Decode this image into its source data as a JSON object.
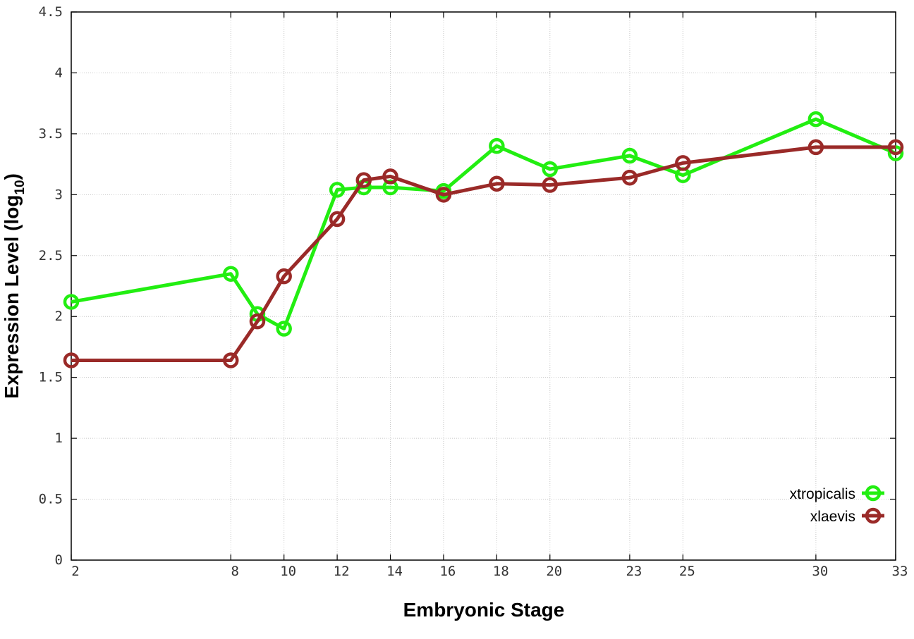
{
  "chart_data": {
    "type": "line",
    "xlabel": "Embryonic Stage",
    "ylabel": "Expression Level (log",
    "ylabel_sub": "10",
    "ylabel_end": ")",
    "x_ticks": [
      2,
      8,
      10,
      12,
      14,
      16,
      18,
      20,
      23,
      25,
      30,
      33
    ],
    "y_ticks": [
      "0",
      "0.5",
      "1",
      "1.5",
      "2",
      "2.5",
      "3",
      "3.5",
      "4",
      "4.5"
    ],
    "xlim": [
      2,
      33
    ],
    "ylim": [
      0,
      4.5
    ],
    "grid": true,
    "legend_position": "bottom-right",
    "series": [
      {
        "name": "xtropicalis",
        "color": "#22ee11",
        "x": [
          2,
          8,
          9,
          10,
          12,
          13,
          14,
          16,
          18,
          20,
          23,
          25,
          30,
          33
        ],
        "y": [
          2.12,
          2.35,
          2.02,
          1.9,
          3.04,
          3.06,
          3.06,
          3.03,
          3.4,
          3.21,
          3.32,
          3.16,
          3.62,
          3.34
        ]
      },
      {
        "name": "xlaevis",
        "color": "#9a2a28",
        "x": [
          2,
          8,
          9,
          10,
          12,
          13,
          14,
          16,
          18,
          20,
          23,
          25,
          30,
          33
        ],
        "y": [
          1.64,
          1.64,
          1.96,
          2.33,
          2.8,
          3.12,
          3.15,
          3.0,
          3.09,
          3.08,
          3.14,
          3.26,
          3.39,
          3.39
        ]
      }
    ]
  }
}
